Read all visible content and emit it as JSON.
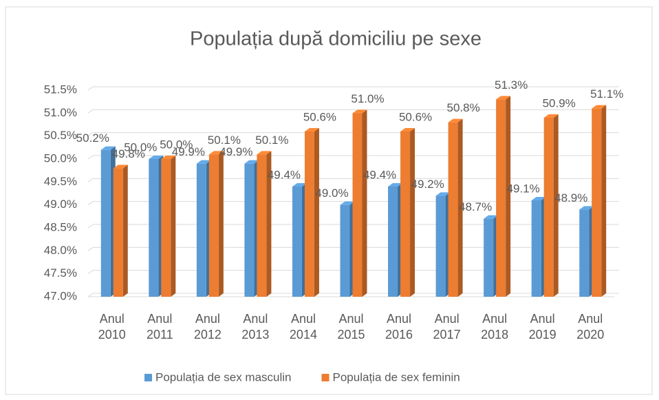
{
  "chart_data": {
    "type": "bar",
    "title": "Populația după domiciliu pe sexe",
    "categories": [
      "Anul 2010",
      "Anul 2011",
      "Anul 2012",
      "Anul 2013",
      "Anul 2014",
      "Anul 2015",
      "Anul 2016",
      "Anul 2017",
      "Anul 2018",
      "Anul 2019",
      "Anul 2020"
    ],
    "series": [
      {
        "name": "Populația de sex masculin",
        "color": "#5b9bd5",
        "values": [
          50.2,
          50.0,
          49.9,
          49.9,
          49.4,
          49.0,
          49.4,
          49.2,
          48.7,
          49.1,
          48.9
        ],
        "value_labels": [
          "50.2%",
          "50.0%",
          "49.9%",
          "49.9%",
          "49.4%",
          "49.0%",
          "49.4%",
          "49.2%",
          "48.7%",
          "49.1%",
          "48.9%"
        ]
      },
      {
        "name": "Populația de sex feminin",
        "color": "#ed7d31",
        "values": [
          49.8,
          50.0,
          50.1,
          50.1,
          50.6,
          51.0,
          50.6,
          50.8,
          51.3,
          50.9,
          51.1
        ],
        "value_labels": [
          "49.8%",
          "50.0%",
          "50.1%",
          "50.1%",
          "50.6%",
          "51.0%",
          "50.6%",
          "50.8%",
          "51.3%",
          "50.9%",
          "51.1%"
        ]
      }
    ],
    "ylim": [
      47,
      51.5
    ],
    "yticks": [
      {
        "value": 47,
        "label": "47.0%"
      },
      {
        "value": 47.5,
        "label": "47.5%"
      },
      {
        "value": 48,
        "label": "48.0%"
      },
      {
        "value": 48.5,
        "label": "48.5%"
      },
      {
        "value": 49,
        "label": "49.0%"
      },
      {
        "value": 49.5,
        "label": "49.5%"
      },
      {
        "value": 50,
        "label": "50.0%"
      },
      {
        "value": 50.5,
        "label": "50.5%"
      },
      {
        "value": 51,
        "label": "51.0%"
      },
      {
        "value": 51.5,
        "label": "51.5%"
      }
    ],
    "grid": true,
    "legend": "bottom"
  }
}
